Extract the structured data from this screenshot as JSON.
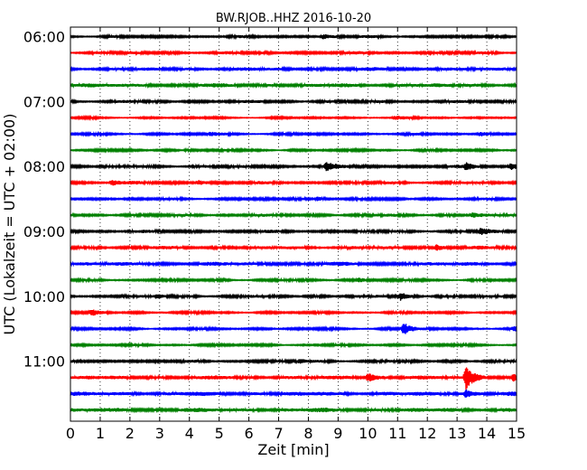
{
  "chart_data": {
    "type": "line",
    "title": "BW.RJOB..HHZ 2016-10-20",
    "xlabel": "Zeit  [min]",
    "ylabel": "UTC (Lokalzeit = UTC + 02:00)",
    "xlim": [
      0,
      15
    ],
    "x_ticks": [
      "0",
      "1",
      "2",
      "3",
      "4",
      "5",
      "6",
      "7",
      "8",
      "9",
      "10",
      "11",
      "12",
      "13",
      "14",
      "15"
    ],
    "y_ticks": [
      "06:00",
      "07:00",
      "08:00",
      "09:00",
      "10:00",
      "11:00"
    ],
    "grid": "vertical dotted",
    "trace_colors": [
      "#000000",
      "#ff0000",
      "#0000ff",
      "#008000"
    ],
    "trace_start_times": [
      "06:00",
      "06:15",
      "06:30",
      "06:45",
      "07:00",
      "07:15",
      "07:30",
      "07:45",
      "08:00",
      "08:15",
      "08:30",
      "08:45",
      "09:00",
      "09:15",
      "09:30",
      "09:45",
      "10:00",
      "10:15",
      "10:30",
      "10:45",
      "11:00",
      "11:15",
      "11:30",
      "11:45"
    ],
    "base_amplitude": [
      0.5,
      0.6,
      0.7,
      0.8,
      0.6,
      0.35,
      0.45,
      0.45,
      0.6,
      0.6,
      0.5,
      0.6,
      0.6,
      0.7,
      0.8,
      0.5,
      0.6,
      0.45,
      0.45,
      0.45,
      0.55,
      0.8,
      0.9,
      0.9
    ],
    "events": [
      {
        "trace": 0,
        "minute": 8.5,
        "amplitude": 1.1
      },
      {
        "trace": 5,
        "minute": 10.9,
        "amplitude": 0.9
      },
      {
        "trace": 6,
        "minute": 4.7,
        "amplitude": 0.8
      },
      {
        "trace": 6,
        "minute": 13.8,
        "amplitude": 0.9
      },
      {
        "trace": 7,
        "minute": 3.9,
        "amplitude": 0.7
      },
      {
        "trace": 8,
        "minute": 8.6,
        "amplitude": 1.8
      },
      {
        "trace": 8,
        "minute": 13.3,
        "amplitude": 1.4
      },
      {
        "trace": 8,
        "minute": 14.8,
        "amplitude": 1.6
      },
      {
        "trace": 9,
        "minute": 1.4,
        "amplitude": 1.4
      },
      {
        "trace": 9,
        "minute": 4.3,
        "amplitude": 1.0
      },
      {
        "trace": 10,
        "minute": 8.3,
        "amplitude": 1.0
      },
      {
        "trace": 11,
        "minute": 13.5,
        "amplitude": 1.0
      },
      {
        "trace": 12,
        "minute": 13.8,
        "amplitude": 1.6
      },
      {
        "trace": 13,
        "minute": 12.3,
        "amplitude": 1.3
      },
      {
        "trace": 15,
        "minute": 9.7,
        "amplitude": 1.0
      },
      {
        "trace": 16,
        "minute": 11.1,
        "amplitude": 1.8
      },
      {
        "trace": 16,
        "minute": 2.9,
        "amplitude": 0.9
      },
      {
        "trace": 17,
        "minute": 0.7,
        "amplitude": 1.4
      },
      {
        "trace": 18,
        "minute": 11.2,
        "amplitude": 3.0
      },
      {
        "trace": 18,
        "minute": 14.9,
        "amplitude": 1.0
      },
      {
        "trace": 20,
        "minute": 7.7,
        "amplitude": 1.0
      },
      {
        "trace": 21,
        "minute": 10.0,
        "amplitude": 2.2
      },
      {
        "trace": 21,
        "minute": 13.3,
        "amplitude": 5.5
      },
      {
        "trace": 21,
        "minute": 14.9,
        "amplitude": 1.5
      },
      {
        "trace": 22,
        "minute": 13.3,
        "amplitude": 1.8
      }
    ]
  }
}
